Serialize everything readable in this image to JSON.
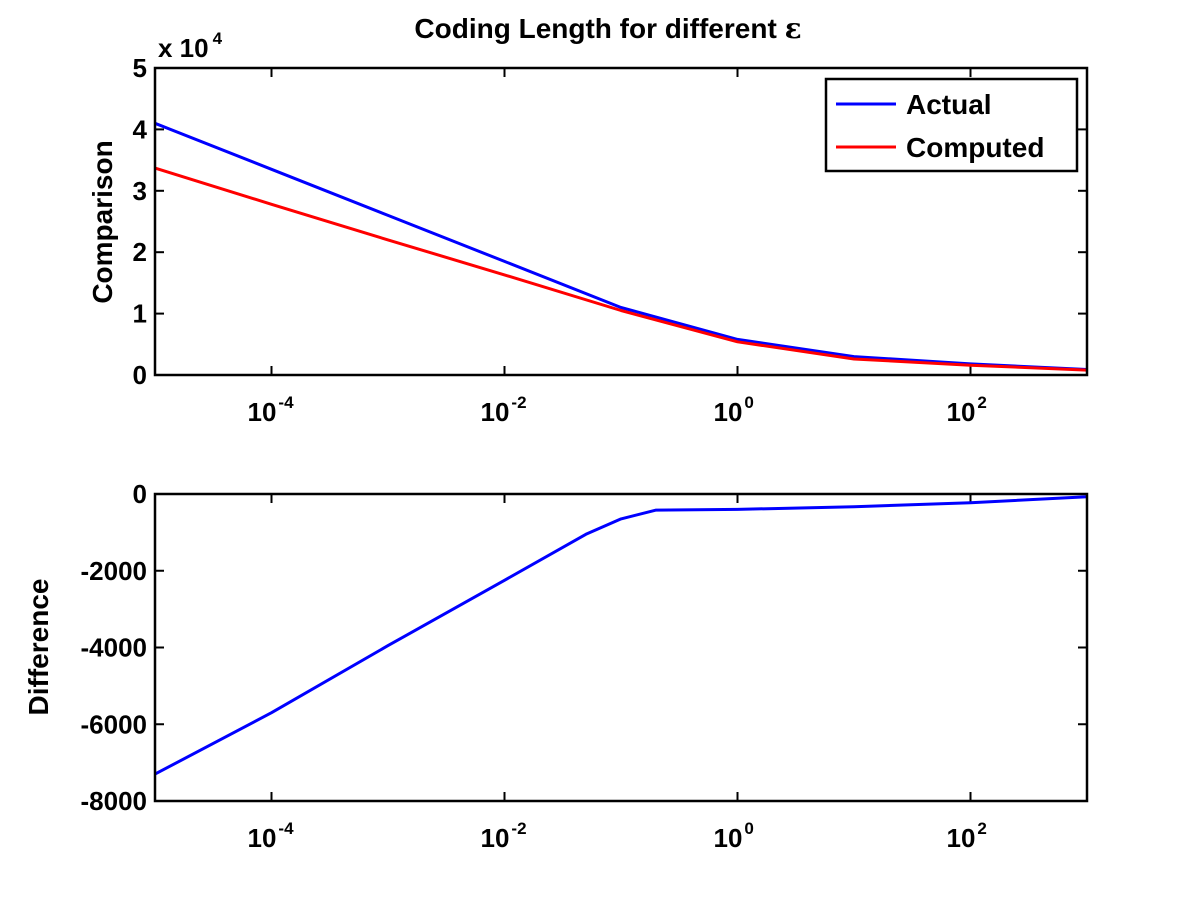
{
  "figure": {
    "title_prefix": "Coding Length for different ",
    "title_symbol": "ε"
  },
  "chart_data": [
    {
      "type": "line",
      "title": "Coding Length for different ε",
      "ylabel": "Comparison",
      "xlabel": "",
      "x_scale": "log",
      "xlim": [
        1e-05,
        1000
      ],
      "ylim": [
        0,
        50000
      ],
      "y_exponent_label": {
        "base": "x 10",
        "power": "4"
      },
      "x_ticks": [
        {
          "value": 0.0001,
          "base": "10",
          "exp": "-4"
        },
        {
          "value": 0.01,
          "base": "10",
          "exp": "-2"
        },
        {
          "value": 1,
          "base": "10",
          "exp": "0"
        },
        {
          "value": 100,
          "base": "10",
          "exp": "2"
        }
      ],
      "y_ticks": [
        {
          "value": 0,
          "label": "0"
        },
        {
          "value": 10000,
          "label": "1"
        },
        {
          "value": 20000,
          "label": "2"
        },
        {
          "value": 30000,
          "label": "3"
        },
        {
          "value": 40000,
          "label": "4"
        },
        {
          "value": 50000,
          "label": "5"
        }
      ],
      "grid": false,
      "legend_position": "top-right",
      "series": [
        {
          "name": "Actual",
          "color": "#0000ff",
          "x": [
            1e-05,
            0.0001,
            0.001,
            0.01,
            0.1,
            1,
            10,
            100,
            1000
          ],
          "y": [
            41000,
            33500,
            26000,
            18500,
            11000,
            5800,
            3000,
            1800,
            900
          ]
        },
        {
          "name": "Computed",
          "color": "#ff0000",
          "x": [
            1e-05,
            0.0001,
            0.001,
            0.01,
            0.1,
            1,
            10,
            100,
            1000
          ],
          "y": [
            33700,
            27800,
            22000,
            16300,
            10500,
            5400,
            2600,
            1600,
            800
          ]
        }
      ]
    },
    {
      "type": "line",
      "title": "",
      "ylabel": "Difference",
      "xlabel": "",
      "x_scale": "log",
      "xlim": [
        1e-05,
        1000
      ],
      "ylim": [
        -8000,
        0
      ],
      "x_ticks": [
        {
          "value": 0.0001,
          "base": "10",
          "exp": "-4"
        },
        {
          "value": 0.01,
          "base": "10",
          "exp": "-2"
        },
        {
          "value": 1,
          "base": "10",
          "exp": "0"
        },
        {
          "value": 100,
          "base": "10",
          "exp": "2"
        }
      ],
      "y_ticks": [
        {
          "value": 0,
          "label": "0"
        },
        {
          "value": -2000,
          "label": "-2000"
        },
        {
          "value": -4000,
          "label": "-4000"
        },
        {
          "value": -6000,
          "label": "-6000"
        },
        {
          "value": -8000,
          "label": "-8000"
        }
      ],
      "grid": false,
      "series": [
        {
          "color": "#0000ff",
          "x": [
            1e-05,
            0.0001,
            0.001,
            0.01,
            0.05,
            0.1,
            0.2,
            1,
            10,
            100,
            1000
          ],
          "y": [
            -7300,
            -5700,
            -3950,
            -2250,
            -1050,
            -650,
            -420,
            -400,
            -330,
            -230,
            -70
          ]
        }
      ]
    }
  ]
}
